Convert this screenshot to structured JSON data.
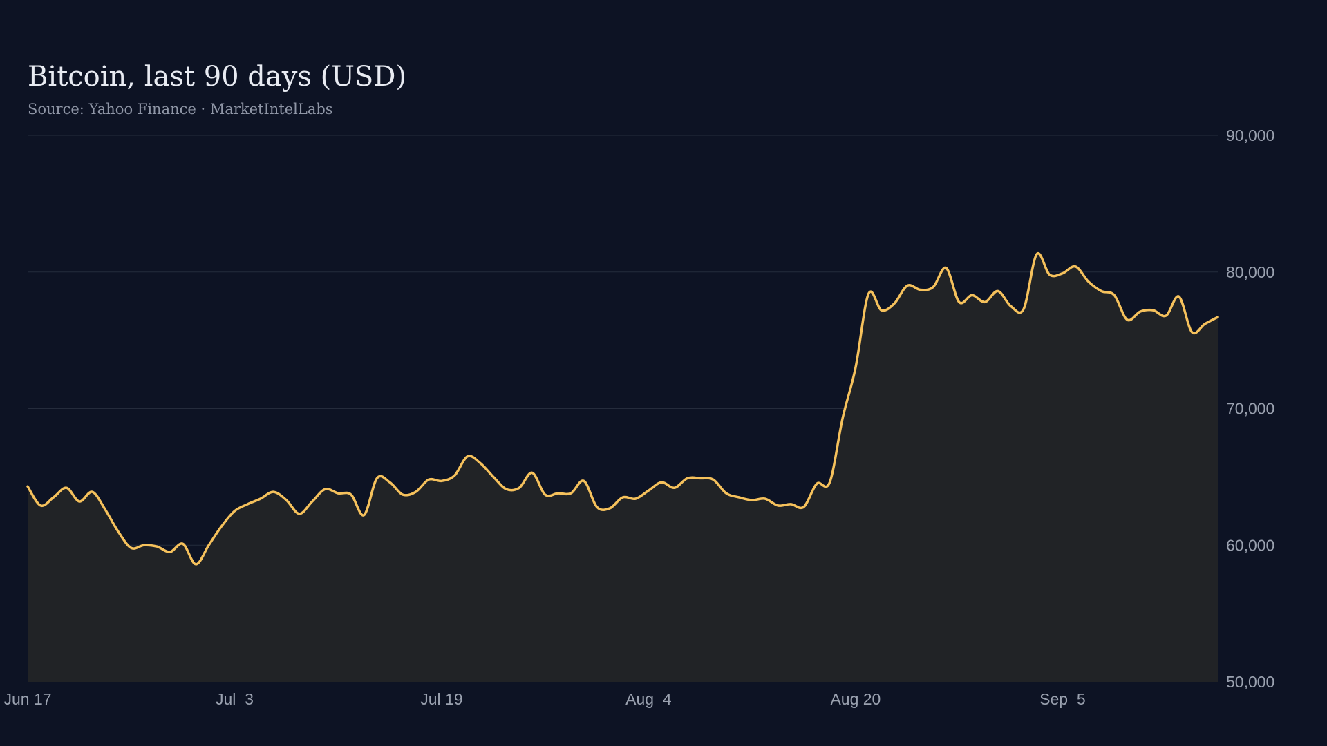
{
  "header": {
    "title": "Bitcoin, last 90 days (USD)",
    "subtitle": "Source: Yahoo Finance · MarketIntelLabs"
  },
  "colors": {
    "background": "#0d1324",
    "line": "#f5c15c",
    "area_fill": "#212326",
    "grid": "#252c3c",
    "tick_text": "#9aa1af"
  },
  "chart_data": {
    "type": "area",
    "title": "Bitcoin, last 90 days (USD)",
    "subtitle": "Source: Yahoo Finance · MarketIntelLabs",
    "xlabel": "",
    "ylabel": "",
    "x_ticks": [
      "Jun 17",
      "Jul  3",
      "Jul 19",
      "Aug  4",
      "Aug 20",
      "Sep  5"
    ],
    "x_tick_index": [
      0,
      16,
      32,
      48,
      64,
      80
    ],
    "y_ticks": [
      50000,
      60000,
      70000,
      80000,
      90000
    ],
    "y_tick_labels": [
      "50,000",
      "60,000",
      "70,000",
      "80,000",
      "90,000"
    ],
    "ylim": [
      50000,
      90000
    ],
    "y_axis_position": "right",
    "grid": true,
    "legend": "none",
    "series": [
      {
        "values": [
          64300,
          62900,
          63500,
          64200,
          63200,
          63900,
          62600,
          61000,
          59800,
          60000,
          59900,
          59500,
          60100,
          58600,
          60000,
          61400,
          62500,
          63000,
          63400,
          63900,
          63300,
          62300,
          63200,
          64100,
          63800,
          63700,
          62200,
          64900,
          64600,
          63700,
          63900,
          64800,
          64700,
          65100,
          66500,
          66000,
          65000,
          64100,
          64200,
          65300,
          63700,
          63800,
          63800,
          64700,
          62800,
          62700,
          63500,
          63400,
          64000,
          64600,
          64200,
          64900,
          64900,
          64800,
          63800,
          63500,
          63300,
          63400,
          62900,
          63000,
          62800,
          64500,
          64600,
          69300,
          73000,
          78400,
          77200,
          77700,
          79000,
          78700,
          78900,
          80300,
          77800,
          78300,
          77800,
          78600,
          77500,
          77300,
          81300,
          79800,
          79900,
          80400,
          79300,
          78600,
          78300,
          76500,
          77100,
          77200,
          76800,
          78200,
          75600,
          76200,
          76700
        ]
      }
    ]
  }
}
